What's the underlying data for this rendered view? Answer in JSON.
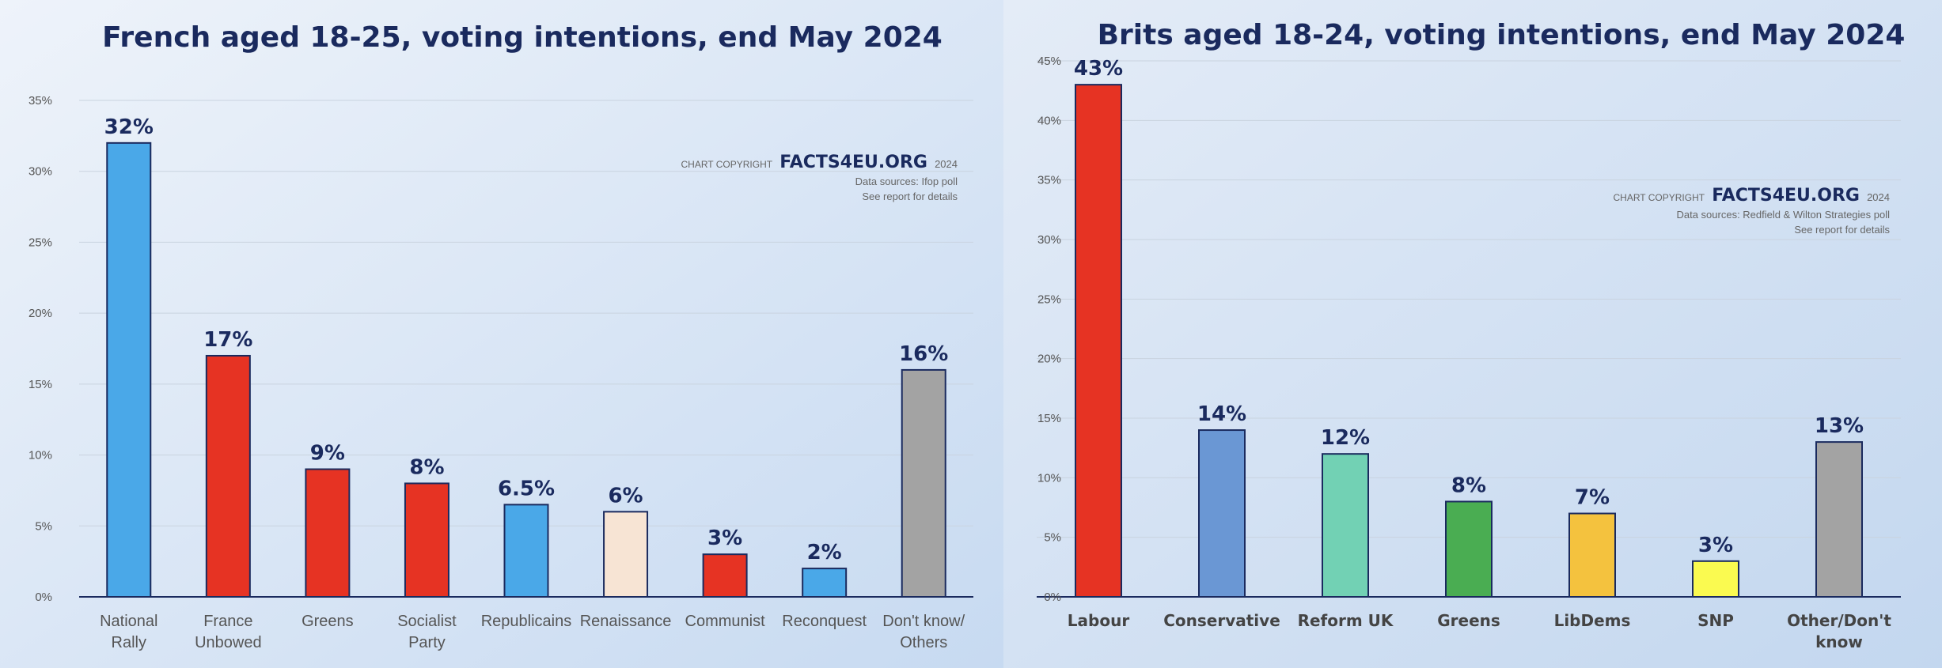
{
  "chart_data": [
    {
      "type": "bar",
      "title": "French aged 18-25, voting intentions, end May 2024",
      "categories": [
        "National Rally",
        "France Unbowed",
        "Greens",
        "Socialist Party",
        "Republicains",
        "Renaissance",
        "Communist",
        "Reconquest",
        "Don't know/ Others"
      ],
      "category_lines": [
        [
          "National",
          "Rally"
        ],
        [
          "France",
          "Unbowed"
        ],
        [
          "Greens"
        ],
        [
          "Socialist",
          "Party"
        ],
        [
          "Republicains"
        ],
        [
          "Renaissance"
        ],
        [
          "Communist"
        ],
        [
          "Reconquest"
        ],
        [
          "Don't know/",
          "Others"
        ]
      ],
      "values": [
        32,
        17,
        9,
        8,
        6.5,
        6,
        3,
        2,
        16
      ],
      "data_labels": [
        "32%",
        "17%",
        "9%",
        "8%",
        "6.5%",
        "6%",
        "3%",
        "2%",
        "16%"
      ],
      "colors": [
        "#4aa8e8",
        "#e63323",
        "#e63323",
        "#e63323",
        "#4aa8e8",
        "#f7e4d4",
        "#e63323",
        "#4aa8e8",
        "#a3a3a3"
      ],
      "ylim": [
        0,
        35
      ],
      "ytick_values": [
        0,
        5,
        10,
        15,
        20,
        25,
        30,
        35
      ],
      "ytick_labels": [
        "0%",
        "5%",
        "10%",
        "15%",
        "20%",
        "25%",
        "30%",
        "35%"
      ],
      "grid": true,
      "copyright": {
        "prefix": "CHART COPYRIGHT",
        "brand": "FACTS4EU.ORG",
        "year": "2024",
        "source": "Data sources: Ifop poll",
        "note": "See report for details"
      }
    },
    {
      "type": "bar",
      "title": "Brits aged 18-24, voting intentions, end May 2024",
      "categories": [
        "Labour",
        "Conservative",
        "Reform UK",
        "Greens",
        "LibDems",
        "SNP",
        "Other/Don't know"
      ],
      "category_lines": [
        [
          "Labour"
        ],
        [
          "Conservative"
        ],
        [
          "Reform UK"
        ],
        [
          "Greens"
        ],
        [
          "LibDems"
        ],
        [
          "SNP"
        ],
        [
          "Other/Don't",
          "know"
        ]
      ],
      "values": [
        43,
        14,
        12,
        8,
        7,
        3,
        13
      ],
      "data_labels": [
        "43%",
        "14%",
        "12%",
        "8%",
        "7%",
        "3%",
        "13%"
      ],
      "colors": [
        "#e63323",
        "#6a97d4",
        "#72d1b4",
        "#4aad52",
        "#f4c23e",
        "#fafa50",
        "#a3a3a3"
      ],
      "ylim": [
        0,
        45
      ],
      "ytick_values": [
        0,
        5,
        10,
        15,
        20,
        25,
        30,
        35,
        40,
        45
      ],
      "ytick_labels": [
        "0%",
        "5%",
        "10%",
        "15%",
        "20%",
        "25%",
        "30%",
        "35%",
        "40%",
        "45%"
      ],
      "grid": true,
      "copyright": {
        "prefix": "CHART COPYRIGHT",
        "brand": "FACTS4EU.ORG",
        "year": "2024",
        "source": "Data sources: Redfield & Wilton Strategies poll",
        "note": "See report for details"
      }
    }
  ],
  "colors": {
    "title": "#1a2a5e",
    "background_left": "#dde8f6",
    "background_right": "#cfdff2"
  }
}
